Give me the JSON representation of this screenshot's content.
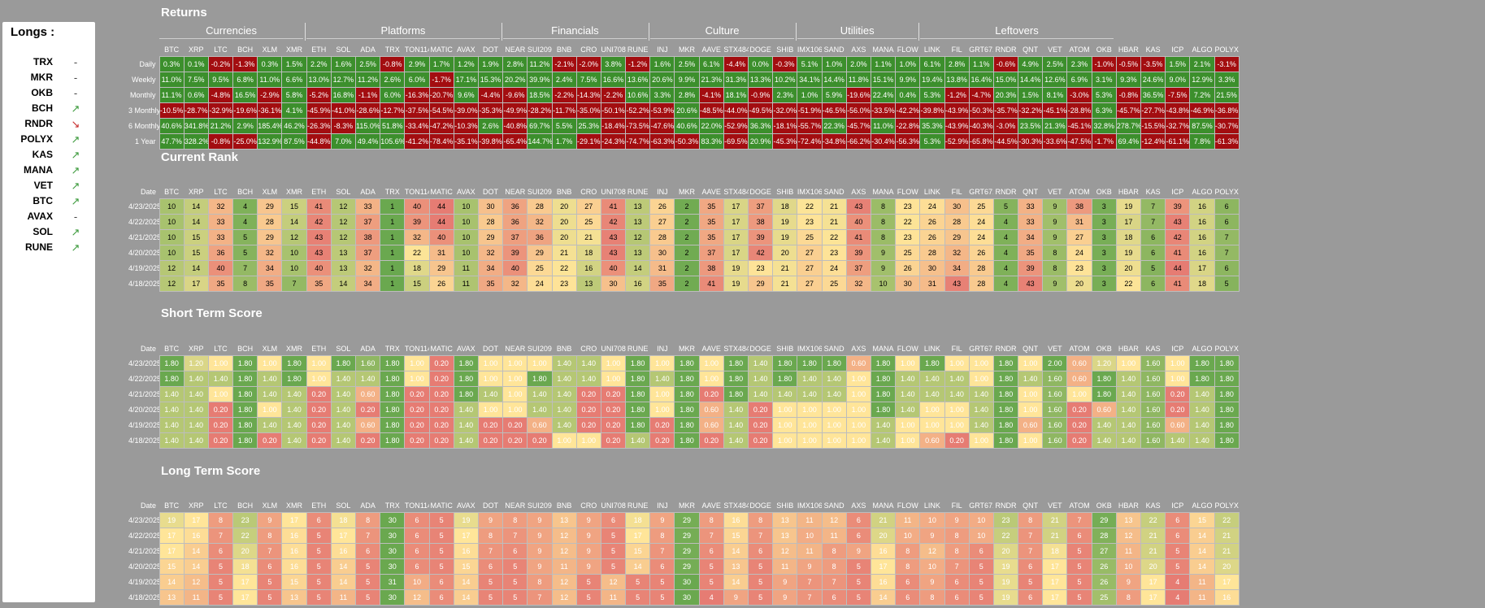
{
  "sidebar": {
    "title": "Longs :",
    "longs": [
      {
        "name": "TRX",
        "trend": "-"
      },
      {
        "name": "MKR",
        "trend": "-"
      },
      {
        "name": "OKB",
        "trend": "-"
      },
      {
        "name": "BCH",
        "trend": "up"
      },
      {
        "name": "RNDR",
        "trend": "down"
      },
      {
        "name": "POLYX",
        "trend": "up"
      },
      {
        "name": "KAS",
        "trend": "up"
      },
      {
        "name": "MANA",
        "trend": "up"
      },
      {
        "name": "VET",
        "trend": "up"
      },
      {
        "name": "BTC",
        "trend": "up"
      },
      {
        "name": "AVAX",
        "trend": "-"
      },
      {
        "name": "SOL",
        "trend": "up"
      },
      {
        "name": "RUNE",
        "trend": "up"
      }
    ]
  },
  "colors": {
    "positive": "#3c8f2c",
    "negative": "#a30d10",
    "background": "#9a9a9a"
  },
  "sections": {
    "returns": "Returns",
    "current_rank": "Current Rank",
    "short_term": "Short Term Score",
    "long_term": "Long Term Score"
  },
  "categories": [
    {
      "name": "Currencies",
      "span": 6
    },
    {
      "name": "Platforms",
      "span": 8
    },
    {
      "name": "Financials",
      "span": 6
    },
    {
      "name": "Culture",
      "span": 6
    },
    {
      "name": "Utilities",
      "span": 5
    },
    {
      "name": "Leftovers",
      "span": 8
    }
  ],
  "assets": [
    "BTC",
    "XRP",
    "LTC",
    "BCH",
    "XLM",
    "XMR",
    "ETH",
    "SOL",
    "ADA",
    "TRX",
    "TON11419",
    "MATIC",
    "AVAX",
    "DOT",
    "NEAR",
    "SUI20947",
    "BNB",
    "CRO",
    "UNI7083",
    "RUNE",
    "INJ",
    "MKR",
    "AAVE",
    "STX4847",
    "DOGE",
    "SHIB",
    "IMX10603",
    "SAND",
    "AXS",
    "MANA",
    "FLOW",
    "LINK",
    "FIL",
    "GRT6719",
    "RNDR",
    "QNT",
    "VET",
    "ATOM",
    "OKB",
    "HBAR",
    "KAS",
    "ICP",
    "ALGO",
    "POLYX"
  ],
  "date_label": "Date",
  "dates": [
    "4/23/2025",
    "4/22/2025",
    "4/21/2025",
    "4/20/2025",
    "4/19/2025",
    "4/18/2025"
  ],
  "returns": {
    "rows": [
      {
        "label": "Daily",
        "values": [
          "0.3%",
          "0.1%",
          "-0.2%",
          "-1.3%",
          "0.3%",
          "1.5%",
          "2.2%",
          "1.6%",
          "2.5%",
          "-0.8%",
          "2.9%",
          "1.7%",
          "1.2%",
          "1.9%",
          "2.8%",
          "11.2%",
          "-2.1%",
          "-2.0%",
          "3.8%",
          "-1.2%",
          "1.6%",
          "2.5%",
          "6.1%",
          "-4.4%",
          "0.0%",
          "-0.3%",
          "5.1%",
          "1.0%",
          "2.0%",
          "1.1%",
          "1.0%",
          "6.1%",
          "2.8%",
          "1.1%",
          "-0.6%",
          "4.9%",
          "2.5%",
          "2.3%",
          "-1.0%",
          "-0.5%",
          "-3.5%",
          "1.5%",
          "2.1%",
          "-3.1%"
        ]
      },
      {
        "label": "Weekly",
        "values": [
          "11.0%",
          "7.5%",
          "9.5%",
          "6.8%",
          "11.0%",
          "6.6%",
          "13.0%",
          "12.7%",
          "11.2%",
          "2.6%",
          "6.0%",
          "-1.7%",
          "17.1%",
          "15.3%",
          "20.2%",
          "39.9%",
          "2.4%",
          "7.5%",
          "16.6%",
          "13.6%",
          "20.6%",
          "9.9%",
          "21.3%",
          "31.3%",
          "13.3%",
          "10.2%",
          "34.1%",
          "14.4%",
          "11.8%",
          "15.1%",
          "9.9%",
          "19.4%",
          "13.8%",
          "16.4%",
          "15.0%",
          "14.4%",
          "12.6%",
          "6.9%",
          "3.1%",
          "9.3%",
          "24.6%",
          "9.0%",
          "12.9%",
          "3.3%"
        ]
      },
      {
        "label": "Monthly",
        "values": [
          "11.1%",
          "0.6%",
          "-4.8%",
          "16.5%",
          "-2.9%",
          "5.8%",
          "-5.2%",
          "16.8%",
          "-1.1%",
          "6.0%",
          "-16.3%",
          "-20.7%",
          "9.6%",
          "-4.4%",
          "-9.6%",
          "18.5%",
          "-2.2%",
          "-14.3%",
          "-2.2%",
          "10.6%",
          "3.3%",
          "2.8%",
          "-4.1%",
          "18.1%",
          "-0.9%",
          "2.3%",
          "1.0%",
          "5.9%",
          "-19.6%",
          "22.4%",
          "0.4%",
          "5.3%",
          "-1.2%",
          "-4.7%",
          "20.3%",
          "1.5%",
          "8.1%",
          "-3.0%",
          "5.3%",
          "-0.8%",
          "36.5%",
          "-7.5%",
          "7.2%",
          "21.5%"
        ]
      },
      {
        "label": "3 Monthly",
        "values": [
          "-10.5%",
          "-28.7%",
          "-32.9%",
          "-19.6%",
          "-36.1%",
          "4.1%",
          "-45.9%",
          "-41.0%",
          "-28.6%",
          "-12.7%",
          "-37.5%",
          "-54.5%",
          "-39.0%",
          "-35.3%",
          "-49.9%",
          "-28.2%",
          "-11.7%",
          "-35.0%",
          "-50.1%",
          "-52.2%",
          "-53.9%",
          "20.6%",
          "-48.5%",
          "-44.0%",
          "-49.5%",
          "-32.0%",
          "-51.9%",
          "-46.5%",
          "-56.0%",
          "-33.5%",
          "-42.2%",
          "-39.8%",
          "-43.9%",
          "-50.3%",
          "-35.7%",
          "-32.2%",
          "-45.1%",
          "-28.8%",
          "6.3%",
          "-45.7%",
          "-27.7%",
          "-43.8%",
          "-46.9%",
          "-36.8%"
        ]
      },
      {
        "label": "6 Monthly",
        "values": [
          "40.6%",
          "341.8%",
          "21.2%",
          "2.9%",
          "185.4%",
          "46.2%",
          "-26.3%",
          "-8.3%",
          "115.0%",
          "51.8%",
          "-33.4%",
          "-47.2%",
          "-10.3%",
          "2.6%",
          "-40.8%",
          "69.7%",
          "5.5%",
          "25.3%",
          "-18.4%",
          "-73.5%",
          "-47.6%",
          "40.6%",
          "22.0%",
          "-52.9%",
          "36.3%",
          "-18.1%",
          "-55.7%",
          "22.3%",
          "-45.7%",
          "11.0%",
          "-22.8%",
          "35.3%",
          "-43.9%",
          "-40.3%",
          "-3.0%",
          "23.5%",
          "21.3%",
          "-45.1%",
          "32.8%",
          "278.7%",
          "-15.5%",
          "-32.7%",
          "87.5%",
          "-30.7%"
        ]
      },
      {
        "label": "1 Year",
        "values": [
          "47.7%",
          "328.2%",
          "-0.8%",
          "-25.0%",
          "132.9%",
          "87.5%",
          "-44.8%",
          "7.0%",
          "49.4%",
          "105.6%",
          "-41.2%",
          "-78.4%",
          "-35.1%",
          "-39.8%",
          "-65.4%",
          "144.7%",
          "1.7%",
          "-29.1%",
          "-24.3%",
          "-74.7%",
          "-63.3%",
          "-50.3%",
          "83.3%",
          "-69.5%",
          "20.9%",
          "-45.3%",
          "-72.4%",
          "-34.8%",
          "-66.2%",
          "-30.4%",
          "-56.3%",
          "5.3%",
          "-52.9%",
          "-65.8%",
          "-44.5%",
          "-30.3%",
          "-33.6%",
          "-47.5%",
          "-1.7%",
          "69.4%",
          "-12.4%",
          "-61.1%",
          "7.8%",
          "-61.3%"
        ]
      }
    ]
  },
  "rank": {
    "rows": [
      [
        10,
        14,
        32,
        4,
        29,
        15,
        41,
        12,
        33,
        1,
        40,
        44,
        10,
        30,
        36,
        28,
        20,
        27,
        41,
        13,
        26,
        2,
        35,
        17,
        37,
        18,
        22,
        21,
        43,
        8,
        23,
        24,
        30,
        25,
        5,
        33,
        9,
        38,
        3,
        19,
        7,
        39,
        16,
        6
      ],
      [
        10,
        14,
        33,
        4,
        28,
        14,
        42,
        12,
        37,
        1,
        39,
        44,
        10,
        28,
        36,
        32,
        20,
        25,
        42,
        13,
        27,
        2,
        35,
        17,
        38,
        19,
        23,
        21,
        40,
        8,
        22,
        26,
        28,
        24,
        4,
        33,
        9,
        31,
        3,
        17,
        7,
        43,
        16,
        6
      ],
      [
        10,
        15,
        33,
        5,
        29,
        12,
        43,
        12,
        38,
        1,
        32,
        40,
        10,
        29,
        37,
        36,
        20,
        21,
        43,
        12,
        28,
        2,
        35,
        17,
        39,
        19,
        25,
        22,
        41,
        8,
        23,
        26,
        29,
        24,
        4,
        34,
        9,
        27,
        3,
        18,
        6,
        42,
        16,
        7
      ],
      [
        10,
        15,
        36,
        5,
        32,
        10,
        43,
        13,
        37,
        1,
        22,
        31,
        10,
        32,
        39,
        29,
        21,
        18,
        43,
        13,
        30,
        2,
        37,
        17,
        42,
        20,
        27,
        23,
        39,
        9,
        25,
        28,
        32,
        26,
        4,
        35,
        8,
        24,
        3,
        19,
        6,
        41,
        16,
        7
      ],
      [
        12,
        14,
        40,
        7,
        34,
        10,
        40,
        13,
        32,
        1,
        18,
        29,
        11,
        34,
        40,
        25,
        22,
        16,
        40,
        14,
        31,
        2,
        38,
        19,
        23,
        21,
        27,
        24,
        37,
        9,
        26,
        30,
        34,
        28,
        4,
        39,
        8,
        23,
        3,
        20,
        5,
        44,
        17,
        6
      ],
      [
        12,
        17,
        35,
        8,
        35,
        7,
        35,
        14,
        34,
        1,
        15,
        26,
        11,
        35,
        32,
        24,
        23,
        13,
        30,
        16,
        35,
        2,
        41,
        19,
        29,
        21,
        27,
        25,
        32,
        10,
        30,
        31,
        43,
        28,
        4,
        43,
        9,
        20,
        3,
        22,
        6,
        41,
        18,
        5
      ]
    ]
  },
  "short_term": {
    "rows": [
      [
        "1.80",
        "1.20",
        "1.00",
        "1.80",
        "1.00",
        "1.80",
        "1.00",
        "1.80",
        "1.60",
        "1.80",
        "1.00",
        "0.20",
        "1.80",
        "1.00",
        "1.00",
        "1.00",
        "1.40",
        "1.40",
        "1.00",
        "1.80",
        "1.00",
        "1.80",
        "1.00",
        "1.80",
        "1.40",
        "1.80",
        "1.80",
        "1.80",
        "0.60",
        "1.80",
        "1.00",
        "1.80",
        "1.00",
        "1.00",
        "1.80",
        "1.00",
        "2.00",
        "0.60",
        "1.20",
        "1.00",
        "1.60",
        "1.00",
        "1.80",
        "1.80"
      ],
      [
        "1.80",
        "1.40",
        "1.40",
        "1.80",
        "1.40",
        "1.80",
        "1.00",
        "1.40",
        "1.40",
        "1.80",
        "1.00",
        "0.20",
        "1.80",
        "1.00",
        "1.00",
        "1.80",
        "1.40",
        "1.40",
        "1.00",
        "1.80",
        "1.40",
        "1.80",
        "1.00",
        "1.80",
        "1.40",
        "1.80",
        "1.40",
        "1.40",
        "1.00",
        "1.80",
        "1.40",
        "1.40",
        "1.40",
        "1.00",
        "1.80",
        "1.40",
        "1.60",
        "0.60",
        "1.80",
        "1.40",
        "1.60",
        "1.00",
        "1.80",
        "1.80"
      ],
      [
        "1.40",
        "1.40",
        "1.00",
        "1.80",
        "1.40",
        "1.40",
        "0.20",
        "1.40",
        "0.60",
        "1.80",
        "0.20",
        "0.20",
        "1.80",
        "1.40",
        "1.00",
        "1.40",
        "1.40",
        "0.20",
        "0.20",
        "1.80",
        "1.00",
        "1.80",
        "0.20",
        "1.80",
        "1.40",
        "1.40",
        "1.40",
        "1.40",
        "1.00",
        "1.80",
        "1.40",
        "1.40",
        "1.40",
        "1.40",
        "1.80",
        "1.00",
        "1.60",
        "1.00",
        "1.80",
        "1.40",
        "1.60",
        "0.20",
        "1.40",
        "1.80"
      ],
      [
        "1.40",
        "1.40",
        "0.20",
        "1.80",
        "1.00",
        "1.40",
        "0.20",
        "1.40",
        "0.20",
        "1.80",
        "0.20",
        "0.20",
        "1.40",
        "1.00",
        "1.00",
        "1.40",
        "1.40",
        "0.20",
        "0.20",
        "1.80",
        "1.00",
        "1.80",
        "0.60",
        "1.40",
        "0.20",
        "1.00",
        "1.00",
        "1.00",
        "1.00",
        "1.80",
        "1.40",
        "1.00",
        "1.00",
        "1.40",
        "1.80",
        "1.00",
        "1.60",
        "0.20",
        "0.60",
        "1.40",
        "1.60",
        "0.20",
        "1.40",
        "1.80"
      ],
      [
        "1.40",
        "1.40",
        "0.20",
        "1.80",
        "1.40",
        "1.40",
        "0.20",
        "1.40",
        "0.60",
        "1.80",
        "0.20",
        "0.20",
        "1.40",
        "0.20",
        "0.20",
        "0.60",
        "1.40",
        "0.20",
        "0.20",
        "1.80",
        "0.20",
        "1.80",
        "0.60",
        "1.40",
        "0.20",
        "1.00",
        "1.00",
        "1.00",
        "1.00",
        "1.40",
        "1.00",
        "1.00",
        "1.00",
        "1.40",
        "1.80",
        "0.60",
        "1.60",
        "0.20",
        "1.40",
        "1.40",
        "1.60",
        "0.60",
        "1.40",
        "1.80"
      ],
      [
        "1.40",
        "1.40",
        "0.20",
        "1.80",
        "0.20",
        "1.40",
        "0.20",
        "1.40",
        "0.20",
        "1.80",
        "0.20",
        "0.20",
        "1.40",
        "0.20",
        "0.20",
        "0.20",
        "1.00",
        "1.00",
        "0.20",
        "1.40",
        "0.20",
        "1.80",
        "0.20",
        "1.40",
        "0.20",
        "1.00",
        "1.00",
        "1.00",
        "1.00",
        "1.40",
        "1.00",
        "0.60",
        "0.20",
        "1.00",
        "1.80",
        "1.00",
        "1.60",
        "0.20",
        "1.40",
        "1.40",
        "1.60",
        "1.40",
        "1.40",
        "1.80"
      ]
    ]
  },
  "long_term": {
    "rows": [
      [
        19,
        17,
        8,
        23,
        9,
        17,
        6,
        18,
        8,
        30,
        6,
        5,
        19,
        9,
        8,
        9,
        13,
        9,
        6,
        18,
        9,
        29,
        8,
        16,
        8,
        13,
        11,
        12,
        6,
        21,
        11,
        10,
        9,
        10,
        23,
        8,
        21,
        7,
        29,
        13,
        22,
        6,
        15,
        22
      ],
      [
        17,
        16,
        7,
        22,
        8,
        16,
        5,
        17,
        7,
        30,
        6,
        5,
        17,
        8,
        7,
        9,
        12,
        9,
        5,
        17,
        8,
        29,
        7,
        15,
        7,
        13,
        10,
        11,
        6,
        20,
        10,
        9,
        8,
        10,
        22,
        7,
        21,
        6,
        28,
        12,
        21,
        6,
        14,
        21
      ],
      [
        17,
        14,
        6,
        20,
        7,
        16,
        5,
        16,
        6,
        30,
        6,
        5,
        16,
        7,
        6,
        9,
        12,
        9,
        5,
        15,
        7,
        29,
        6,
        14,
        6,
        12,
        11,
        8,
        9,
        16,
        8,
        12,
        8,
        6,
        20,
        7,
        18,
        5,
        27,
        11,
        21,
        5,
        14,
        21
      ],
      [
        15,
        14,
        5,
        18,
        6,
        16,
        5,
        14,
        5,
        30,
        6,
        5,
        15,
        6,
        5,
        9,
        11,
        9,
        5,
        14,
        6,
        29,
        5,
        13,
        5,
        11,
        9,
        8,
        5,
        17,
        8,
        10,
        7,
        5,
        19,
        6,
        17,
        5,
        26,
        10,
        20,
        5,
        14,
        20
      ],
      [
        14,
        12,
        5,
        17,
        5,
        15,
        5,
        14,
        5,
        31,
        10,
        6,
        14,
        5,
        5,
        8,
        12,
        5,
        12,
        5,
        5,
        30,
        5,
        14,
        5,
        9,
        7,
        7,
        5,
        16,
        6,
        9,
        6,
        5,
        19,
        5,
        17,
        5,
        26,
        9,
        17,
        4,
        11,
        17
      ],
      [
        13,
        11,
        5,
        17,
        5,
        13,
        5,
        11,
        5,
        30,
        12,
        6,
        14,
        5,
        5,
        7,
        12,
        5,
        11,
        5,
        5,
        30,
        4,
        9,
        5,
        9,
        7,
        6,
        5,
        14,
        6,
        8,
        6,
        5,
        19,
        6,
        17,
        5,
        25,
        8,
        17,
        4,
        11,
        16
      ]
    ]
  }
}
